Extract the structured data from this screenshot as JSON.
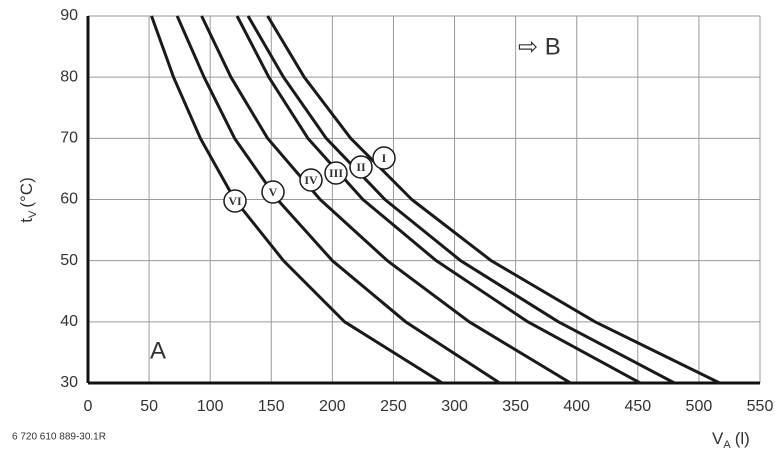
{
  "chart_data": {
    "type": "line",
    "y_label_symbol": "t",
    "y_label_subscript": "V",
    "y_label_unit": "(°C)",
    "x_label_symbol": "V",
    "x_label_subscript": "A",
    "x_label_unit": "(l)",
    "annotations": [
      "A",
      "⇨ B"
    ],
    "footnote": "6 720 610 889-30.1R",
    "xlim": [
      0,
      550
    ],
    "xticks": [
      0,
      50,
      100,
      150,
      200,
      250,
      300,
      350,
      400,
      450,
      500,
      550
    ],
    "ylim": [
      30,
      90
    ],
    "yticks": [
      30,
      40,
      50,
      60,
      70,
      80,
      90
    ],
    "grid": true,
    "series": [
      {
        "name": "I",
        "color": "#1a1a1a",
        "x": [
          147,
          177,
          215,
          265,
          330,
          415,
          517
        ],
        "values": [
          90,
          80,
          70,
          60,
          50,
          40,
          30
        ]
      },
      {
        "name": "II",
        "color": "#1a1a1a",
        "x": [
          131,
          160,
          195,
          243,
          305,
          385,
          480
        ],
        "values": [
          90,
          80,
          70,
          60,
          50,
          40,
          30
        ]
      },
      {
        "name": "III",
        "color": "#1a1a1a",
        "x": [
          122,
          148,
          180,
          225,
          285,
          360,
          452
        ],
        "values": [
          90,
          80,
          70,
          60,
          50,
          40,
          30
        ]
      },
      {
        "name": "IV",
        "color": "#1a1a1a",
        "x": [
          93,
          117,
          147,
          190,
          245,
          312,
          395
        ],
        "values": [
          90,
          80,
          70,
          60,
          50,
          40,
          30
        ]
      },
      {
        "name": "V",
        "color": "#1a1a1a",
        "x": [
          73,
          95,
          120,
          155,
          200,
          260,
          337
        ],
        "values": [
          90,
          80,
          70,
          60,
          50,
          40,
          30
        ]
      },
      {
        "name": "VI",
        "color": "#1a1a1a",
        "x": [
          52,
          70,
          92,
          120,
          160,
          210,
          290
        ],
        "values": [
          90,
          80,
          70,
          60,
          50,
          40,
          30
        ]
      }
    ]
  }
}
